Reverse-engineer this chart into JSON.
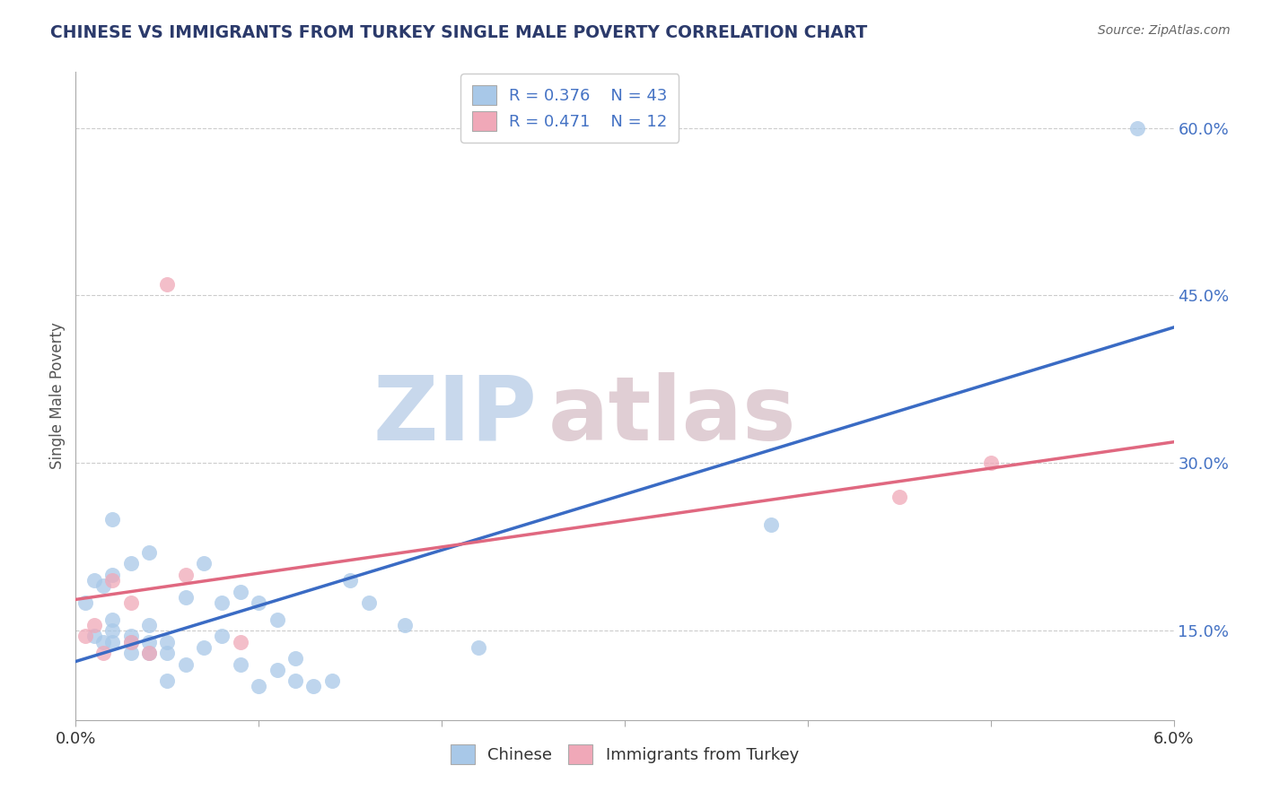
{
  "title": "CHINESE VS IMMIGRANTS FROM TURKEY SINGLE MALE POVERTY CORRELATION CHART",
  "source": "Source: ZipAtlas.com",
  "ylabel": "Single Male Poverty",
  "xlim": [
    0.0,
    0.06
  ],
  "ylim": [
    0.07,
    0.65
  ],
  "xticks": [
    0.0,
    0.01,
    0.02,
    0.03,
    0.04,
    0.05,
    0.06
  ],
  "xticklabels_ends": {
    "0.0": "0.0%",
    "0.06": "6.0%"
  },
  "yticks_right": [
    0.15,
    0.3,
    0.45,
    0.6
  ],
  "ytick_right_labels": [
    "15.0%",
    "30.0%",
    "45.0%",
    "60.0%"
  ],
  "R_chinese": 0.376,
  "N_chinese": 43,
  "R_turkey": 0.471,
  "N_turkey": 12,
  "blue_color": "#A8C8E8",
  "pink_color": "#F0A8B8",
  "blue_line_color": "#3A6BC4",
  "pink_line_color": "#E06880",
  "legend_R_color": "#4472C4",
  "chinese_x": [
    0.0005,
    0.001,
    0.001,
    0.0015,
    0.0015,
    0.002,
    0.002,
    0.002,
    0.002,
    0.002,
    0.003,
    0.003,
    0.003,
    0.003,
    0.004,
    0.004,
    0.004,
    0.004,
    0.005,
    0.005,
    0.005,
    0.006,
    0.006,
    0.007,
    0.007,
    0.008,
    0.008,
    0.009,
    0.009,
    0.01,
    0.01,
    0.011,
    0.011,
    0.012,
    0.012,
    0.013,
    0.014,
    0.015,
    0.016,
    0.018,
    0.022,
    0.038,
    0.058
  ],
  "chinese_y": [
    0.175,
    0.145,
    0.195,
    0.14,
    0.19,
    0.14,
    0.15,
    0.16,
    0.2,
    0.25,
    0.13,
    0.14,
    0.145,
    0.21,
    0.13,
    0.14,
    0.155,
    0.22,
    0.105,
    0.13,
    0.14,
    0.12,
    0.18,
    0.135,
    0.21,
    0.145,
    0.175,
    0.12,
    0.185,
    0.175,
    0.1,
    0.115,
    0.16,
    0.105,
    0.125,
    0.1,
    0.105,
    0.195,
    0.175,
    0.155,
    0.135,
    0.245,
    0.6
  ],
  "turkey_x": [
    0.0005,
    0.001,
    0.0015,
    0.002,
    0.003,
    0.003,
    0.004,
    0.005,
    0.006,
    0.009,
    0.045,
    0.05
  ],
  "turkey_y": [
    0.145,
    0.155,
    0.13,
    0.195,
    0.14,
    0.175,
    0.13,
    0.46,
    0.2,
    0.14,
    0.27,
    0.3
  ]
}
